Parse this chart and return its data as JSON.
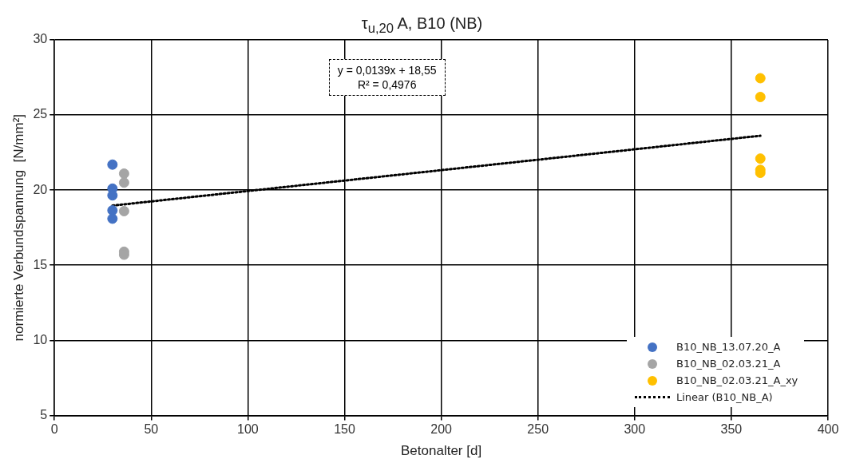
{
  "chart_data": {
    "type": "scatter",
    "title": "τ$_{u,20}$ A, B10 (NB)",
    "xlabel": "Betonalter [d]",
    "ylabel": "normierte Verbundspannung  [N/mm²]",
    "xlim": [
      0,
      400
    ],
    "xticks": [
      0,
      50,
      100,
      150,
      200,
      250,
      300,
      350,
      400
    ],
    "ylim": [
      5,
      30
    ],
    "yticks": [
      5,
      10,
      15,
      20,
      25,
      30
    ],
    "grid": true,
    "legend": "bottom right",
    "marker": "circle",
    "annotations": [
      "y = 0,0139x + 18,55\nR² = 0,4976"
    ],
    "series": [
      {
        "name": "B10_NB_13.07.20_A",
        "color": "#4472c4",
        "x": [
          30,
          30,
          30,
          30,
          30
        ],
        "values": [
          21.7,
          20.1,
          19.65,
          18.65,
          18.1
        ]
      },
      {
        "name": "B10_NB_02.03.21_A",
        "color": "#a5a5a5",
        "x": [
          36,
          36,
          36,
          36,
          36
        ],
        "values": [
          21.1,
          20.5,
          18.6,
          15.9,
          15.7
        ]
      },
      {
        "name": "B10_NB_02.03.21_A_xy",
        "color": "#ffc000",
        "x": [
          365,
          365,
          365,
          365,
          365
        ],
        "values": [
          27.45,
          26.2,
          22.1,
          21.35,
          21.15
        ]
      },
      {
        "name": "Linear (B10_NB_A)",
        "type": "line",
        "color": "#000000",
        "line_style": "dotted",
        "marker": "none",
        "x": [
          30,
          365
        ],
        "values": [
          18.97,
          23.62
        ]
      }
    ]
  }
}
